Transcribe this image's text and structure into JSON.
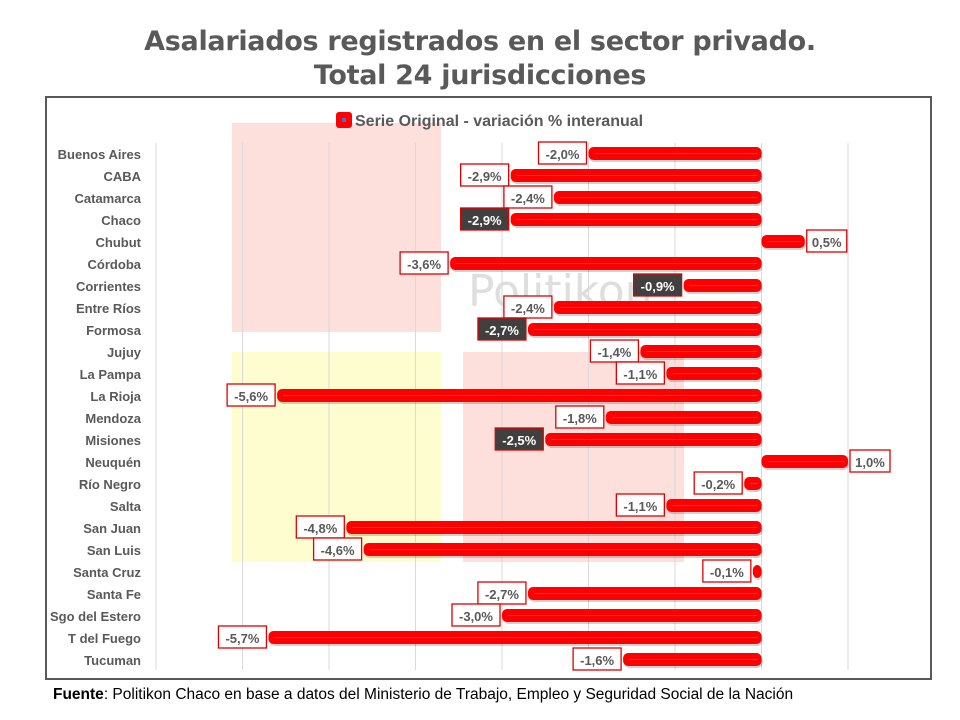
{
  "title_line1": "Asalariados registrados en el sector privado.",
  "title_line2": "Total 24 jurisdicciones",
  "footer": {
    "label": "Fuente",
    "text": ": Politikon Chaco en base a datos del Ministerio de Trabajo, Empleo y Seguridad Social de la Nación"
  },
  "watermark": "Politikon",
  "colors": {
    "bar": "#ff0000",
    "bar_inner_line": "#4472c4",
    "label_border": "#e00000",
    "highlight_label_bg": "#404040",
    "pink_zone": "#fde0dc",
    "yellow_zone": "#fefdd0",
    "grid": "#d9d9d9",
    "category_text": "#595959"
  },
  "chart_data": {
    "type": "bar",
    "orientation": "horizontal",
    "title": "Asalariados registrados en el sector privado. Total 24 jurisdicciones",
    "legend": {
      "label": "Serie Original - variación % interanual",
      "position": "top"
    },
    "xlim": [
      -7,
      1
    ],
    "grid": true,
    "categories": [
      "Buenos Aires",
      "CABA",
      "Catamarca",
      "Chaco",
      "Chubut",
      "Córdoba",
      "Corrientes",
      "Entre Ríos",
      "Formosa",
      "Jujuy",
      "La Pampa",
      "La Rioja",
      "Mendoza",
      "Misiones",
      "Neuquén",
      "Río Negro",
      "Salta",
      "San Juan",
      "San Luis",
      "Santa Cruz",
      "Santa Fe",
      "Sgo del Estero",
      "T del Fuego",
      "Tucuman"
    ],
    "series": [
      {
        "name": "Serie Original - variación % interanual",
        "values": [
          -2.0,
          -2.9,
          -2.4,
          -2.9,
          0.5,
          -3.6,
          -0.9,
          -2.4,
          -2.7,
          -1.4,
          -1.1,
          -5.6,
          -1.8,
          -2.5,
          1.0,
          -0.2,
          -1.1,
          -4.8,
          -4.6,
          -0.1,
          -2.7,
          -3.0,
          -5.7,
          -1.6
        ],
        "labels": [
          "-2,0%",
          "-2,9%",
          "-2,4%",
          "-2,9%",
          "0,5%",
          "-3,6%",
          "-0,9%",
          "-2,4%",
          "-2,7%",
          "-1,4%",
          "-1,1%",
          "-5,6%",
          "-1,8%",
          "-2,5%",
          "1,0%",
          "-0,2%",
          "-1,1%",
          "-4,8%",
          "-4,6%",
          "-0,1%",
          "-2,7%",
          "-3,0%",
          "-5,7%",
          "-1,6%"
        ],
        "highlighted": [
          "Chaco",
          "Corrientes",
          "Formosa",
          "Misiones"
        ]
      }
    ]
  }
}
